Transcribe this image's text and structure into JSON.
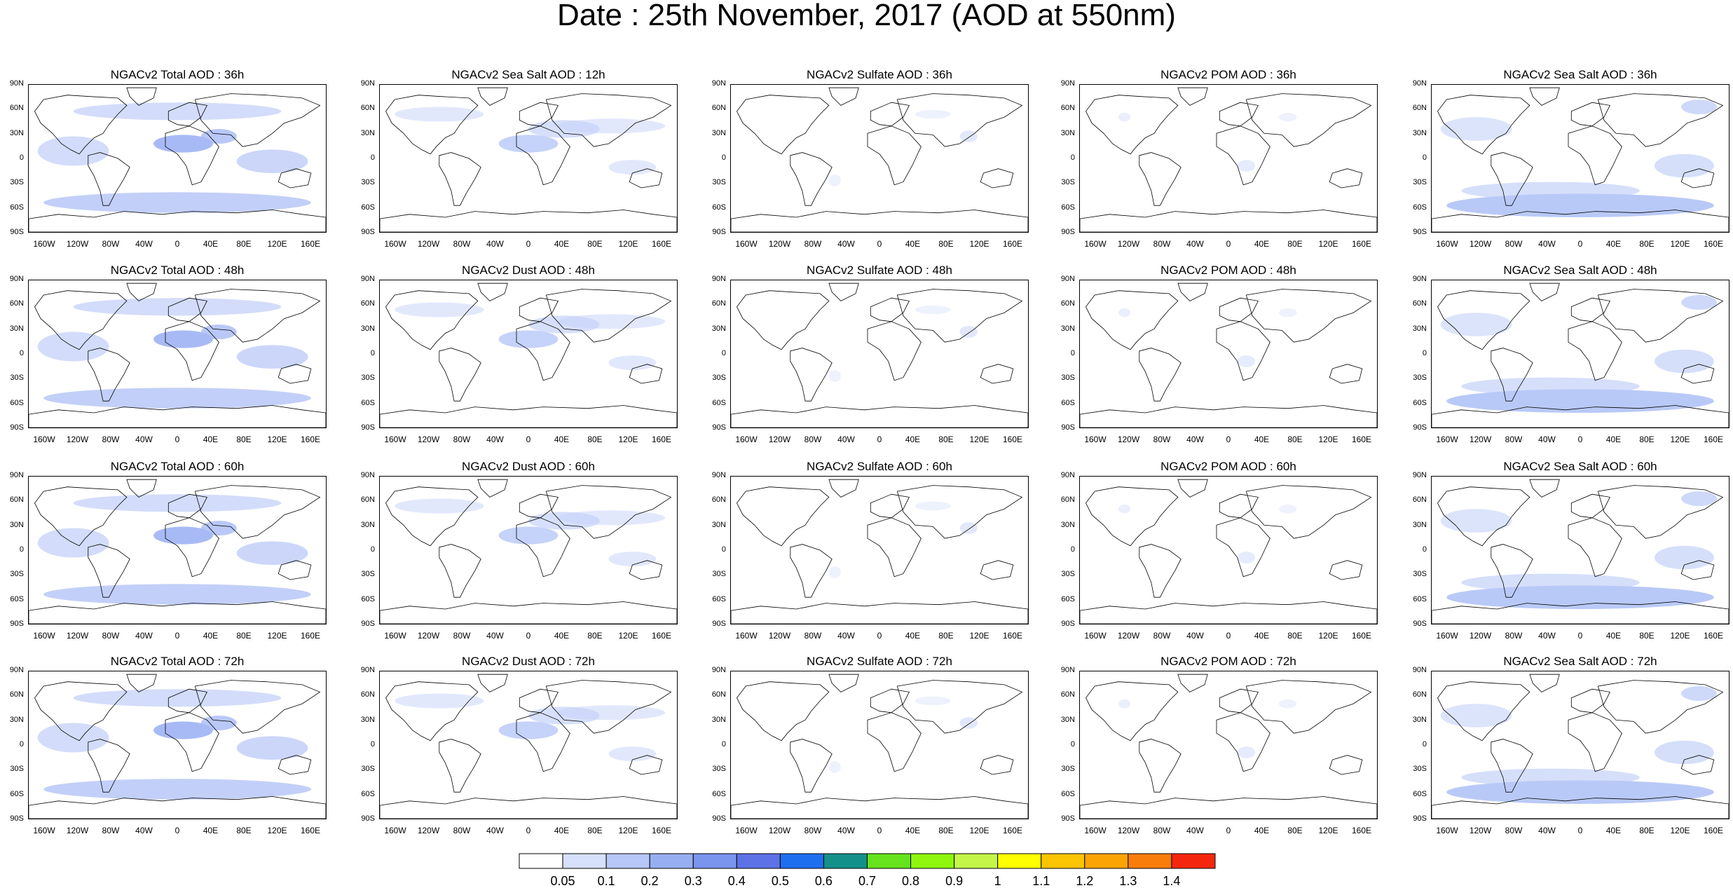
{
  "title": "Date : 25th November, 2017 (AOD at 550nm)",
  "lat_labels": [
    "90N",
    "60N",
    "30N",
    "0",
    "30S",
    "60S",
    "90S"
  ],
  "lon_labels": [
    "160W",
    "120W",
    "80W",
    "40W",
    "0",
    "40E",
    "80E",
    "120E",
    "160E"
  ],
  "panels": [
    [
      {
        "title": "NGACv2 Total AOD : 36h",
        "color": "#a8baf5"
      },
      {
        "title": "NGACv2 Sea Salt  AOD : 12h",
        "color": "#c5d2f9"
      },
      {
        "title": "NGACv2 Sulfate AOD : 36h",
        "color": "#d5defb"
      },
      {
        "title": "NGACv2 POM AOD : 36h",
        "color": "#d5defb"
      },
      {
        "title": "NGACv2 Sea Salt AOD : 36h",
        "color": "#b9c9f7"
      }
    ],
    [
      {
        "title": "NGACv2 Total AOD : 48h",
        "color": "#a8baf5"
      },
      {
        "title": "NGACv2 Dust AOD : 48h",
        "color": "#c5d2f9"
      },
      {
        "title": "NGACv2 Sulfate AOD : 48h",
        "color": "#d5defb"
      },
      {
        "title": "NGACv2 POM AOD : 48h",
        "color": "#d5defb"
      },
      {
        "title": "NGACv2 Sea Salt AOD : 48h",
        "color": "#b9c9f7"
      }
    ],
    [
      {
        "title": "NGACv2 Total AOD : 60h",
        "color": "#a8baf5"
      },
      {
        "title": "NGACv2 Dust AOD : 60h",
        "color": "#c5d2f9"
      },
      {
        "title": "NGACv2 Sulfate AOD : 60h",
        "color": "#d5defb"
      },
      {
        "title": "NGACv2 POM AOD : 60h",
        "color": "#d5defb"
      },
      {
        "title": "NGACv2 Sea Salt AOD : 60h",
        "color": "#b9c9f7"
      }
    ],
    [
      {
        "title": "NGACv2 Total AOD : 72h",
        "color": "#a8baf5"
      },
      {
        "title": "NGACv2 Dust AOD : 72h",
        "color": "#c5d2f9"
      },
      {
        "title": "NGACv2 Sulfate AOD : 72h",
        "color": "#d5defb"
      },
      {
        "title": "NGACv2 POM AOD : 72h",
        "color": "#d5defb"
      },
      {
        "title": "NGACv2 Sea Salt  AOD : 72h",
        "color": "#b9c9f7"
      }
    ]
  ],
  "colorbar": {
    "labels": [
      "0.05",
      "0.1",
      "0.2",
      "0.3",
      "0.4",
      "0.5",
      "0.6",
      "0.7",
      "0.8",
      "0.9",
      "1",
      "1.1",
      "1.2",
      "1.3",
      "1.4"
    ],
    "colors": [
      "#ffffff",
      "#d6e0fb",
      "#b7c7f7",
      "#98aef2",
      "#7a95ed",
      "#5d72e6",
      "#1e6ff0",
      "#14908a",
      "#66e31c",
      "#8ef70d",
      "#c4f549",
      "#ffff00",
      "#fbc503",
      "#fba405",
      "#f97d0a",
      "#f4270e"
    ]
  }
}
